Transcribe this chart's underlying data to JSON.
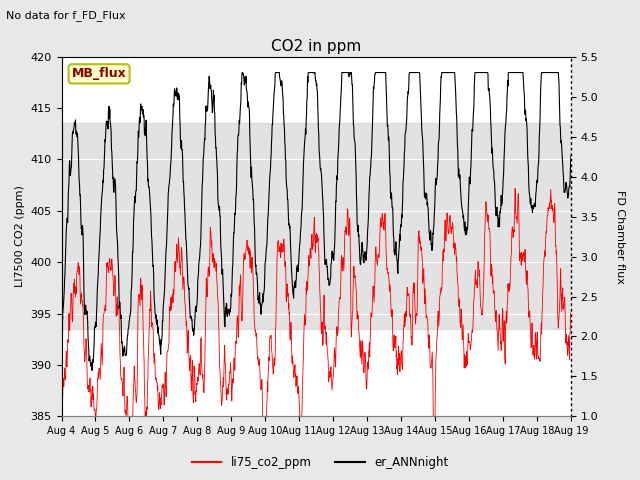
{
  "title": "CO2 in ppm",
  "top_left_text": "No data for f_FD_Flux",
  "legend_box_text": "MB_flux",
  "left_ylabel": "LI7500 CO2 (ppm)",
  "right_ylabel": "FD Chamber flux",
  "xlabel_ticks": [
    "Aug 4",
    "Aug 5",
    "Aug 6",
    "Aug 7",
    "Aug 8",
    "Aug 9",
    "Aug 10",
    "Aug 11",
    "Aug 12",
    "Aug 13",
    "Aug 14",
    "Aug 15",
    "Aug 16",
    "Aug 17",
    "Aug 18",
    "Aug 19"
  ],
  "ylim_left": [
    385,
    420
  ],
  "ylim_right": [
    1.0,
    5.5
  ],
  "yticks_left": [
    385,
    390,
    395,
    400,
    405,
    410,
    415,
    420
  ],
  "yticks_right": [
    1.0,
    1.5,
    2.0,
    2.5,
    3.0,
    3.5,
    4.0,
    4.5,
    5.0,
    5.5
  ],
  "legend_labels": [
    "li75_co2_ppm",
    "er_ANNnight"
  ],
  "legend_colors": [
    "red",
    "black"
  ],
  "band_ylim": [
    393.5,
    413.5
  ],
  "background_color": "#e8e8e8",
  "plot_bg_color": "white",
  "n_points": 1500
}
